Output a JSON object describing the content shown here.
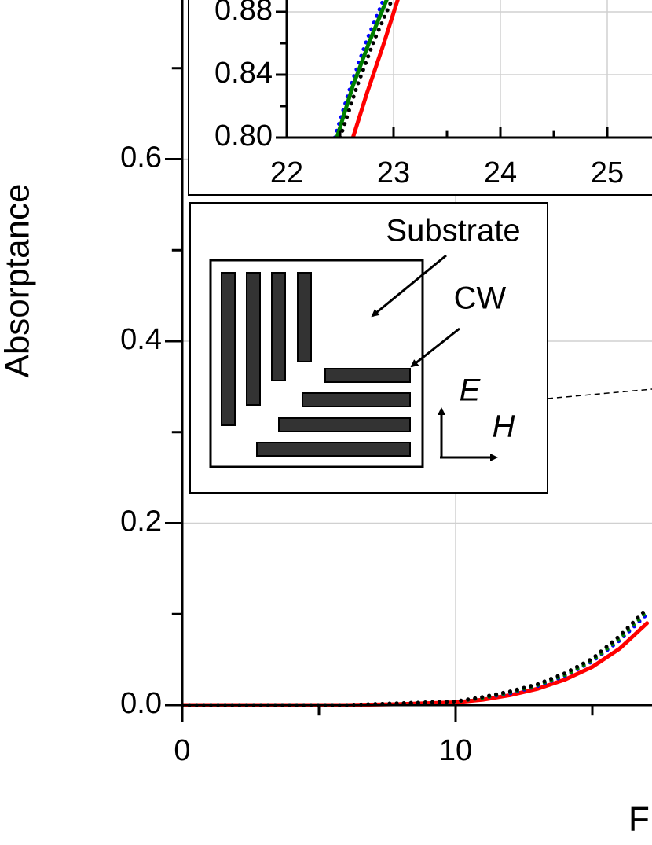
{
  "chart_data": [
    {
      "type": "line",
      "ylabel": "Absorptance",
      "xlabel": "F",
      "x": [
        0,
        2,
        4,
        6,
        8,
        10,
        11,
        12,
        13,
        14,
        15,
        16,
        17
      ],
      "series": [
        {
          "color": "#ff0000",
          "style": "solid",
          "values": [
            0,
            0,
            0,
            0,
            0.001,
            0.003,
            0.006,
            0.011,
            0.018,
            0.028,
            0.042,
            0.062,
            0.09
          ]
        },
        {
          "color": "#0000ff",
          "style": "dotted",
          "values": [
            0,
            0,
            0,
            0,
            0.002,
            0.004,
            0.008,
            0.013,
            0.021,
            0.032,
            0.048,
            0.071,
            0.1
          ]
        },
        {
          "color": "#008000",
          "style": "dotted",
          "values": [
            0,
            0,
            0,
            0,
            0.002,
            0.004,
            0.008,
            0.014,
            0.022,
            0.033,
            0.049,
            0.073,
            0.103
          ]
        },
        {
          "color": "#000000",
          "style": "dotted",
          "values": [
            0,
            0,
            0,
            0,
            0.002,
            0.004,
            0.009,
            0.015,
            0.023,
            0.035,
            0.051,
            0.076,
            0.106
          ]
        }
      ],
      "xlim": [
        0,
        20
      ],
      "ylim": [
        0,
        0.8
      ],
      "xticks": [
        0,
        10
      ],
      "xminor": [
        5,
        15
      ],
      "yticks": [
        {
          "value": 0,
          "label": "0.0"
        },
        {
          "value": 0.2,
          "label": "0.2"
        },
        {
          "value": 0.4,
          "label": "0.4"
        },
        {
          "value": 0.6,
          "label": "0.6"
        }
      ],
      "yminor": [
        0.1,
        0.3,
        0.5,
        0.7
      ],
      "grid": true
    },
    {
      "type": "line",
      "series": [
        {
          "color": "#ff0000",
          "style": "solid",
          "x": [
            22.62,
            22.75,
            22.9,
            23.05
          ],
          "values": [
            0.8,
            0.828,
            0.858,
            0.89
          ]
        },
        {
          "color": "#0000ff",
          "style": "dotted",
          "x": [
            22.45,
            22.6,
            22.75,
            22.92
          ],
          "values": [
            0.8,
            0.833,
            0.862,
            0.89
          ]
        },
        {
          "color": "#008000",
          "style": "solid",
          "x": [
            22.47,
            22.62,
            22.78,
            22.95
          ],
          "values": [
            0.8,
            0.833,
            0.862,
            0.89
          ]
        },
        {
          "color": "#000000",
          "style": "dotted",
          "x": [
            22.5,
            22.66,
            22.82,
            23.0
          ],
          "values": [
            0.8,
            0.833,
            0.862,
            0.89
          ]
        }
      ],
      "xlim": [
        22,
        26
      ],
      "ylim": [
        0.8,
        0.89
      ],
      "xticks": [
        22,
        23,
        24,
        25
      ],
      "xminor": [
        22.5,
        23.5,
        24.5,
        25.5
      ],
      "yticks": [
        {
          "value": 0.8,
          "label": "0.80"
        },
        {
          "value": 0.84,
          "label": "0.84"
        },
        {
          "value": 0.88,
          "label": "0.88"
        }
      ],
      "yminor": [
        0.82,
        0.86
      ],
      "grid": true
    }
  ],
  "diagram": {
    "substrate": "Substrate",
    "cw": "CW",
    "e": "E",
    "h": "H"
  }
}
